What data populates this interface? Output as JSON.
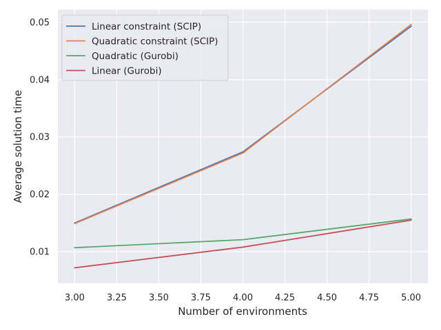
{
  "chart_data": {
    "type": "line",
    "title": "",
    "xlabel": "Number of environments",
    "ylabel": "Average solution time",
    "x": [
      3,
      4,
      5
    ],
    "xlim": [
      2.9,
      5.1
    ],
    "ylim": [
      0.0045,
      0.0522
    ],
    "xticks": [
      3.0,
      3.25,
      3.5,
      3.75,
      4.0,
      4.25,
      4.5,
      4.75,
      5.0
    ],
    "xtick_labels": [
      "3.00",
      "3.25",
      "3.50",
      "3.75",
      "4.00",
      "4.25",
      "4.50",
      "4.75",
      "5.00"
    ],
    "yticks": [
      0.01,
      0.02,
      0.03,
      0.04,
      0.05
    ],
    "ytick_labels": [
      "0.01",
      "0.02",
      "0.03",
      "0.04",
      "0.05"
    ],
    "grid": true,
    "legend_position": "top-left",
    "background": "#eaeaf2",
    "series": [
      {
        "name": "Linear constraint (SCIP)",
        "color": "#4c72b0",
        "values": [
          0.015,
          0.0274,
          0.0493
        ]
      },
      {
        "name": "Quadratic constraint (SCIP)",
        "color": "#dd8452",
        "values": [
          0.0149,
          0.0272,
          0.0496
        ]
      },
      {
        "name": "Quadratic (Gurobi)",
        "color": "#55a868",
        "values": [
          0.0107,
          0.0121,
          0.0157
        ]
      },
      {
        "name": "Linear (Gurobi)",
        "color": "#c44e52",
        "values": [
          0.0072,
          0.0108,
          0.0155
        ]
      }
    ]
  }
}
